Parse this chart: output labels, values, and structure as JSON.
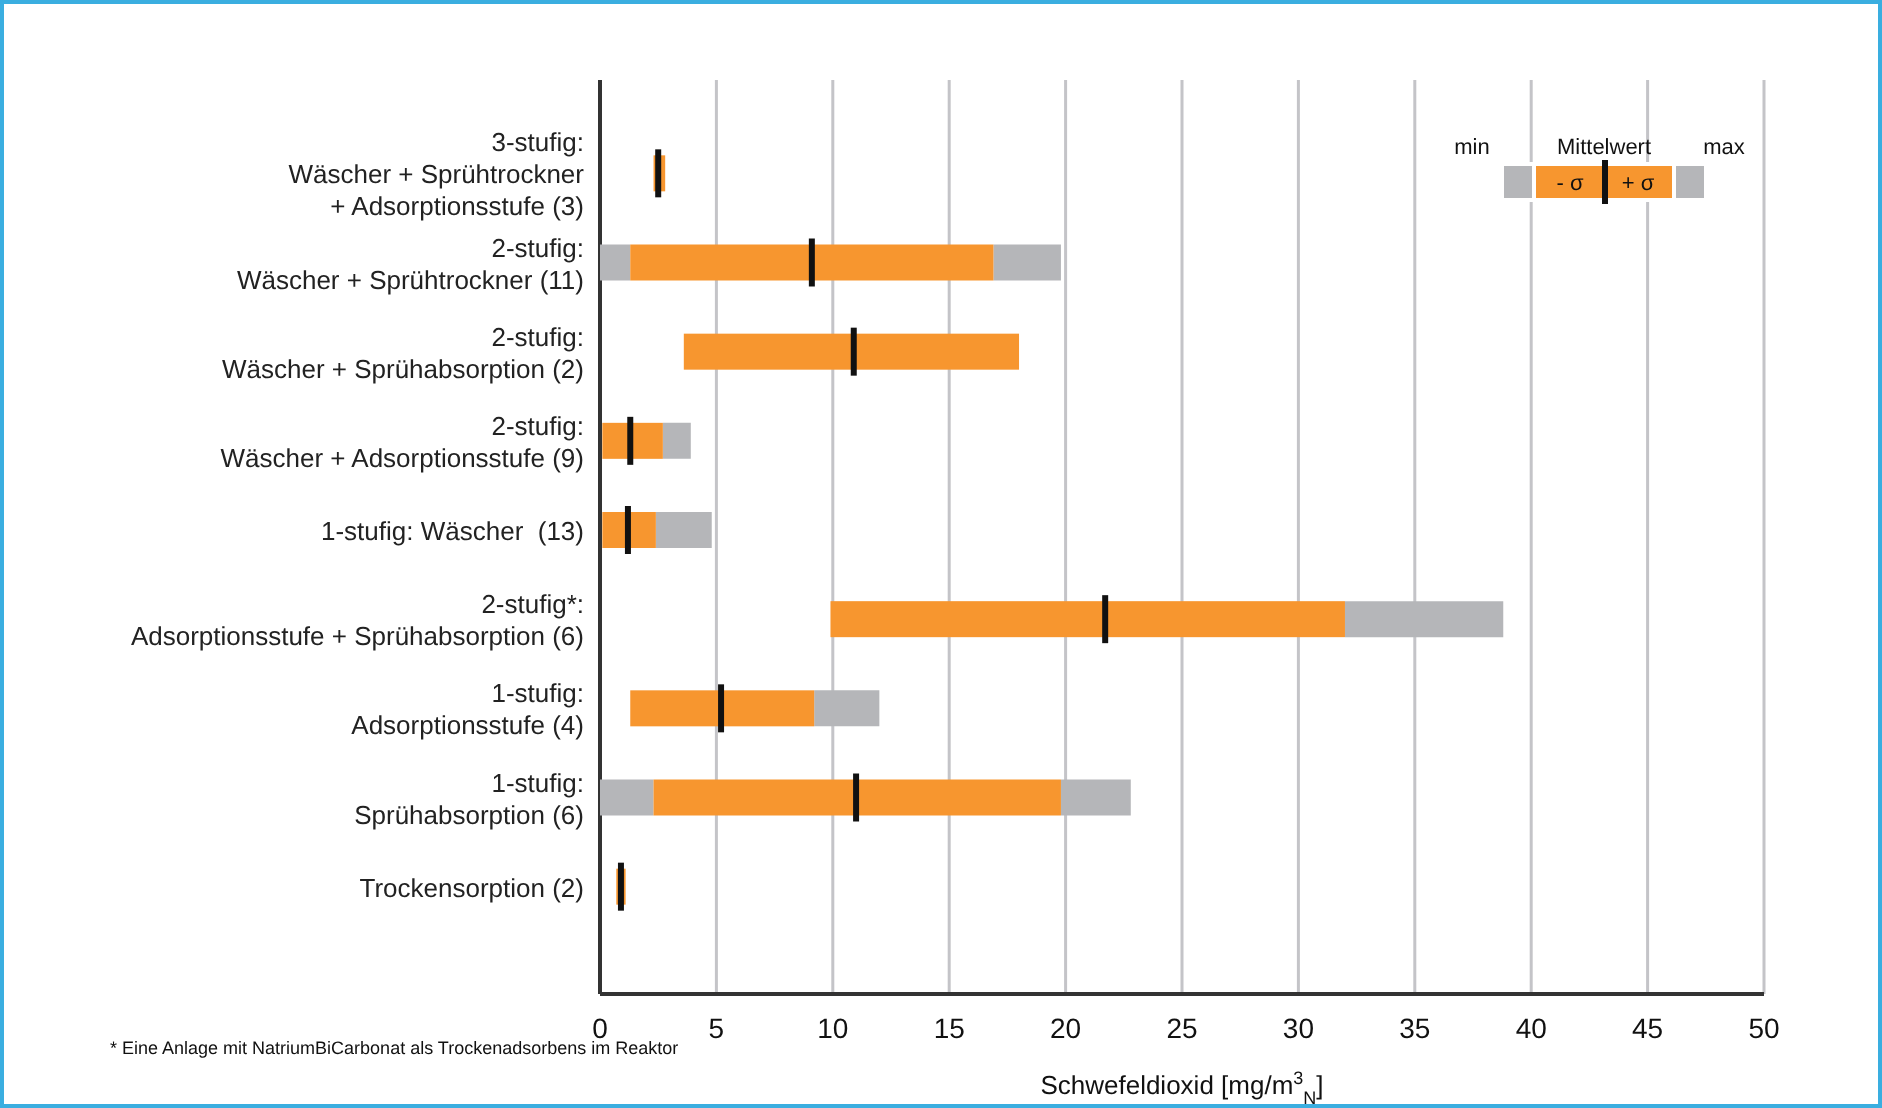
{
  "chart_data": {
    "type": "box",
    "orientation": "horizontal",
    "xlabel": "Schwefeldioxid [mg/m$^{3}$$_{N}$]",
    "categories": [
      "3-stufig:\nWäscher + Sprühtrockner\n+ Adsorptionsstufe (3)",
      "2-stufig:\nWäscher + Sprühtrockner (11)",
      "2-stufig:\nWäscher + Sprühabsorption (2)",
      "2-stufig:\nWäscher + Adsorptionsstufe (9)",
      "1-stufig: Wäscher  (13)",
      "2-stufig*:\nAdsorptionsstufe + Sprühabsorption (6)",
      "1-stufig:\nAdsorptionsstufe (4)",
      "1-stufig:\nSprühabsorption (6)",
      "Trockensorption (2)"
    ],
    "series": [
      {
        "color": "#f7962f",
        "boxes": [
          {
            "low": 2.3,
            "q1": 2.3,
            "median": 2.5,
            "q3": 2.8,
            "high": 2.8
          },
          {
            "low": 0.0,
            "q1": 1.3,
            "median": 9.1,
            "q3": 16.9,
            "high": 19.8
          },
          {
            "low": 3.6,
            "q1": 3.6,
            "median": 10.9,
            "q3": 18.0,
            "high": 18.0
          },
          {
            "low": 0.1,
            "q1": 0.1,
            "median": 1.3,
            "q3": 2.7,
            "high": 3.9
          },
          {
            "low": 0.1,
            "q1": 0.1,
            "median": 1.2,
            "q3": 2.4,
            "high": 4.8
          },
          {
            "low": 9.9,
            "q1": 9.9,
            "median": 21.7,
            "q3": 32.0,
            "high": 38.8
          },
          {
            "low": 1.3,
            "q1": 1.3,
            "median": 5.2,
            "q3": 9.2,
            "high": 12.0
          },
          {
            "low": 0.0,
            "q1": 2.3,
            "median": 11.0,
            "q3": 19.8,
            "high": 22.8
          },
          {
            "low": 0.7,
            "q1": 0.7,
            "median": 0.9,
            "q3": 1.1,
            "high": 1.1
          }
        ]
      }
    ],
    "xlim": [
      0,
      50
    ],
    "xticks": [
      0,
      5,
      10,
      15,
      20,
      25,
      30,
      35,
      40,
      45,
      50
    ],
    "grid": "x",
    "annotations": [
      "min",
      "Mittelwert",
      "max",
      "- σ",
      "+ σ",
      "* Eine Anlage mit NatriumBiCarbonat als Trockenadsorbens im Reaktor"
    ]
  }
}
